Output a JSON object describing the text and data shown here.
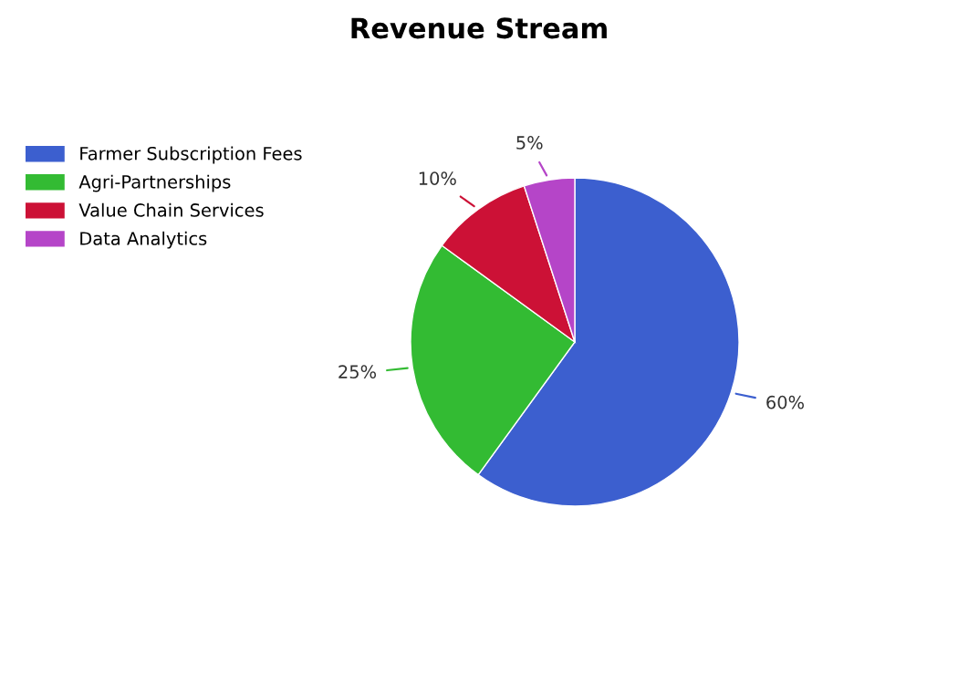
{
  "chart_data": {
    "type": "pie",
    "title": "Revenue Stream",
    "categories": [
      "Farmer Subscription Fees",
      "Agri-Partnerships",
      "Value Chain Services",
      "Data Analytics"
    ],
    "values": [
      60,
      25,
      10,
      5
    ],
    "colors": [
      "#3c5fcf",
      "#33bb33",
      "#cc1136",
      "#b545c8"
    ],
    "value_labels": [
      "60%",
      "25%",
      "10%",
      "5%"
    ],
    "legend": "top left"
  }
}
